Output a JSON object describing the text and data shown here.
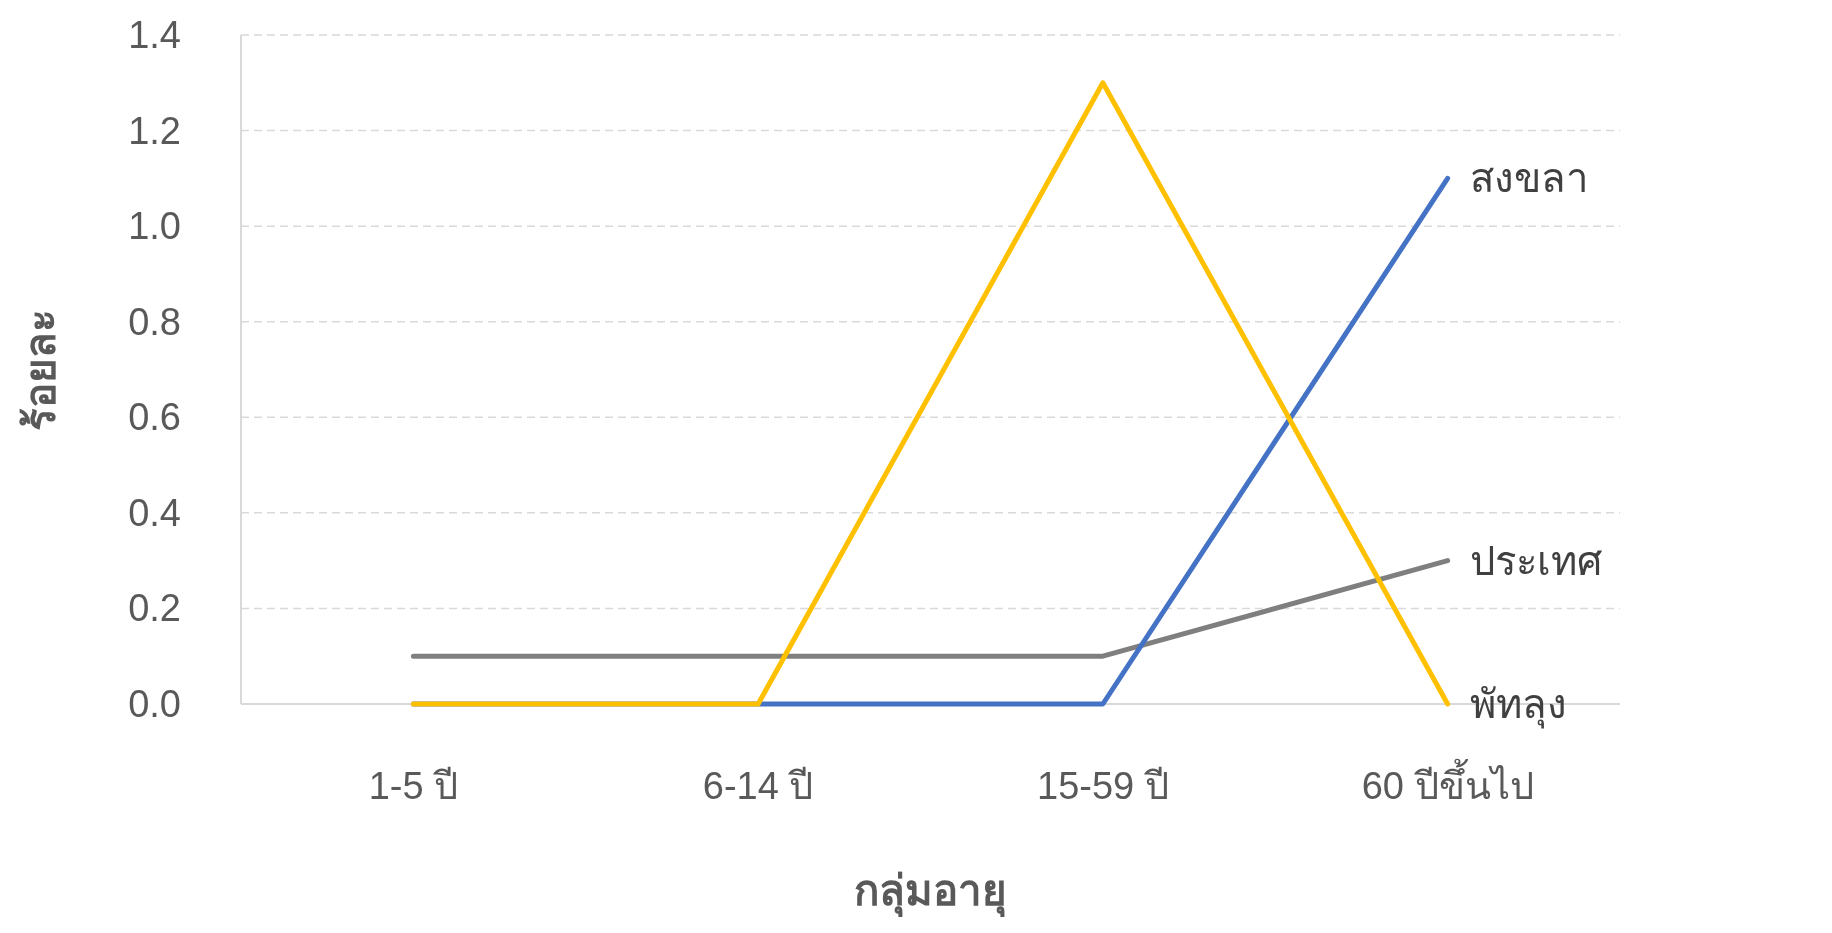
{
  "chart_data": {
    "type": "line",
    "xlabel": "กลุ่มอายุ",
    "ylabel": "ร้อยละ",
    "categories": [
      "1-5 ปี",
      "6-14 ปี",
      "15-59 ปี",
      "60 ปีขึ้นไป"
    ],
    "series": [
      {
        "name": "ประเทศ",
        "color": "#7f7f7f",
        "values": [
          0.1,
          0.1,
          0.1,
          0.3
        ]
      },
      {
        "name": "สงขลา",
        "color": "#4472c4",
        "values": [
          0,
          0,
          0,
          1.1
        ]
      },
      {
        "name": "พัทลุง",
        "color": "#ffc000",
        "values": [
          0,
          0,
          1.3,
          0
        ]
      }
    ],
    "ylim": [
      0,
      1.4
    ],
    "yticks": [
      {
        "value": 0,
        "label": "0.0"
      },
      {
        "value": 0.2,
        "label": "0.2"
      },
      {
        "value": 0.4,
        "label": "0.4"
      },
      {
        "value": 0.6,
        "label": "0.6"
      },
      {
        "value": 0.8,
        "label": "0.8"
      },
      {
        "value": 1.0,
        "label": "1.0"
      },
      {
        "value": 1.2,
        "label": "1.2"
      },
      {
        "value": 1.4,
        "label": "1.4"
      }
    ],
    "grid": "y",
    "marker": "none",
    "line_style": "solid"
  }
}
